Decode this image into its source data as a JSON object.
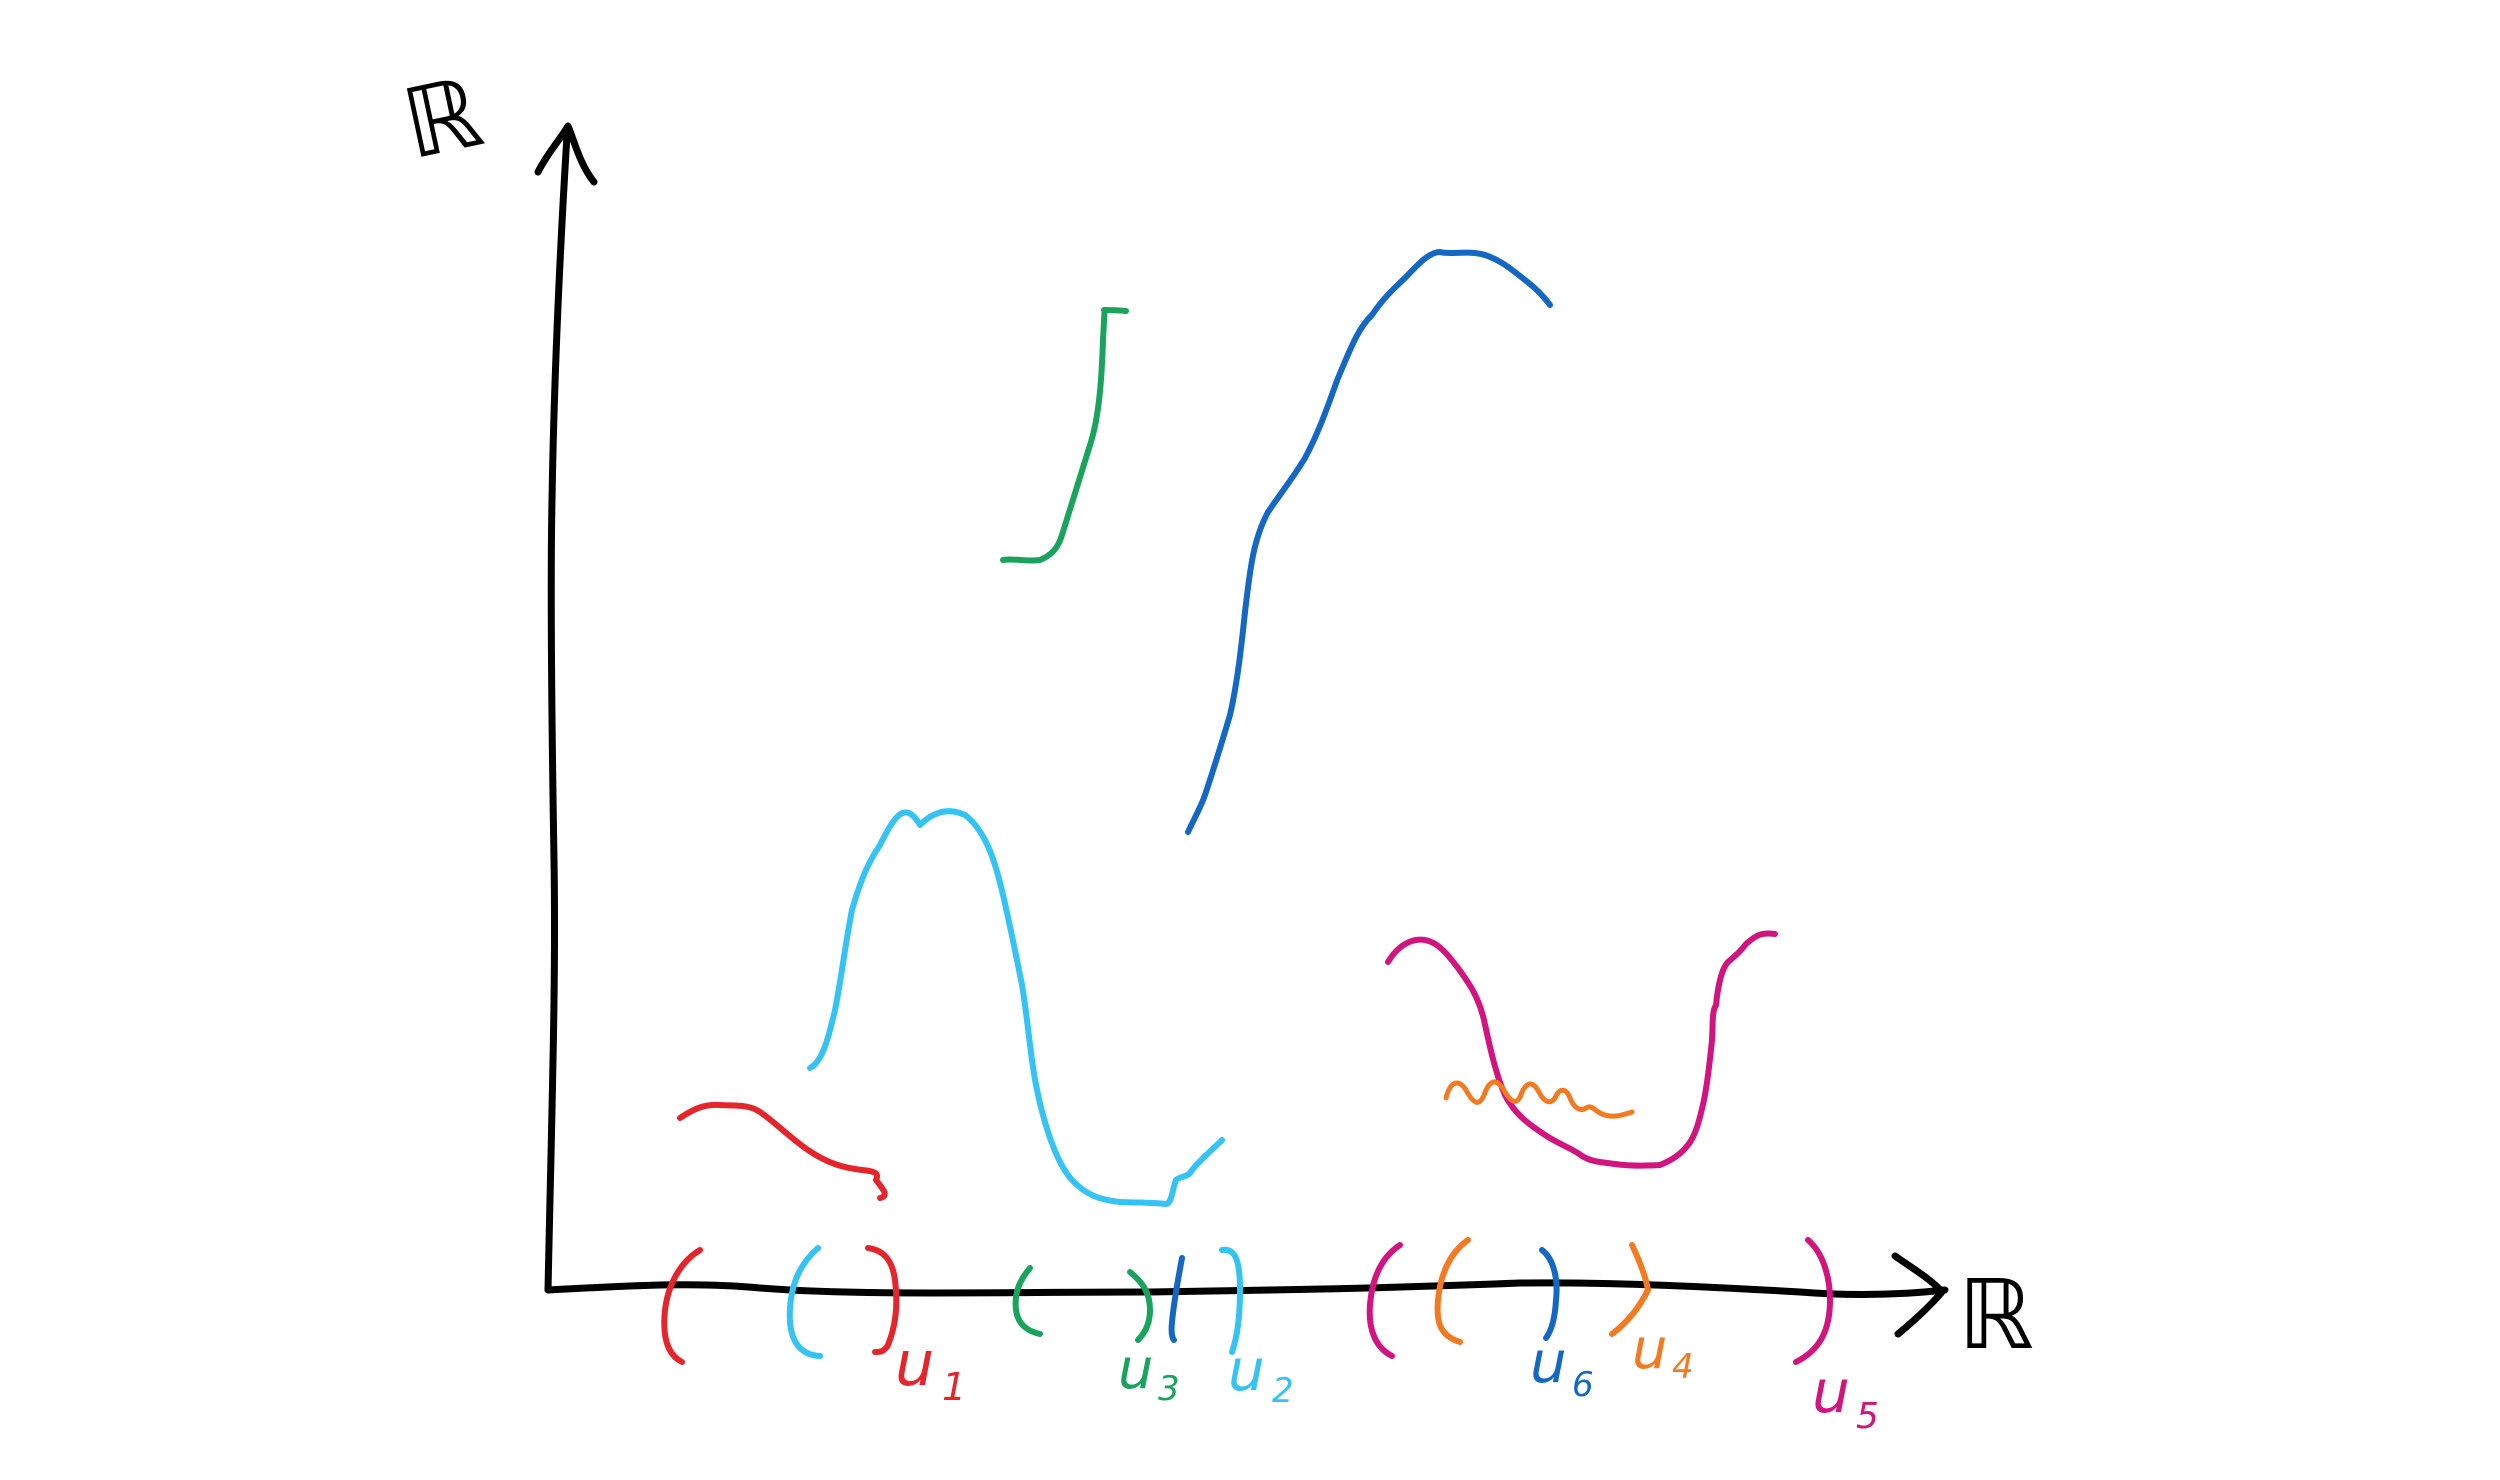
{
  "axes": {
    "x_axis_label": "ℝ",
    "y_axis_label": "ℝ"
  },
  "colors": {
    "axis": "#000000",
    "u1": "#e4262c",
    "u2": "#35c3f3",
    "u3": "#1aa35c",
    "u4": "#f27a21",
    "u5": "#d1147e",
    "u6": "#1468c4"
  },
  "intervals": [
    {
      "id": "u1",
      "subscript": "1",
      "color_key": "u1"
    },
    {
      "id": "u2",
      "subscript": "2",
      "color_key": "u2"
    },
    {
      "id": "u3",
      "subscript": "3",
      "color_key": "u3"
    },
    {
      "id": "u4",
      "subscript": "4",
      "color_key": "u4"
    },
    {
      "id": "u5",
      "subscript": "5",
      "color_key": "u5"
    },
    {
      "id": "u6",
      "subscript": "6",
      "color_key": "u6"
    }
  ],
  "labels": {
    "u1": "u",
    "u2": "u",
    "u3": "u",
    "u4": "u",
    "u5": "u",
    "u6": "u"
  }
}
